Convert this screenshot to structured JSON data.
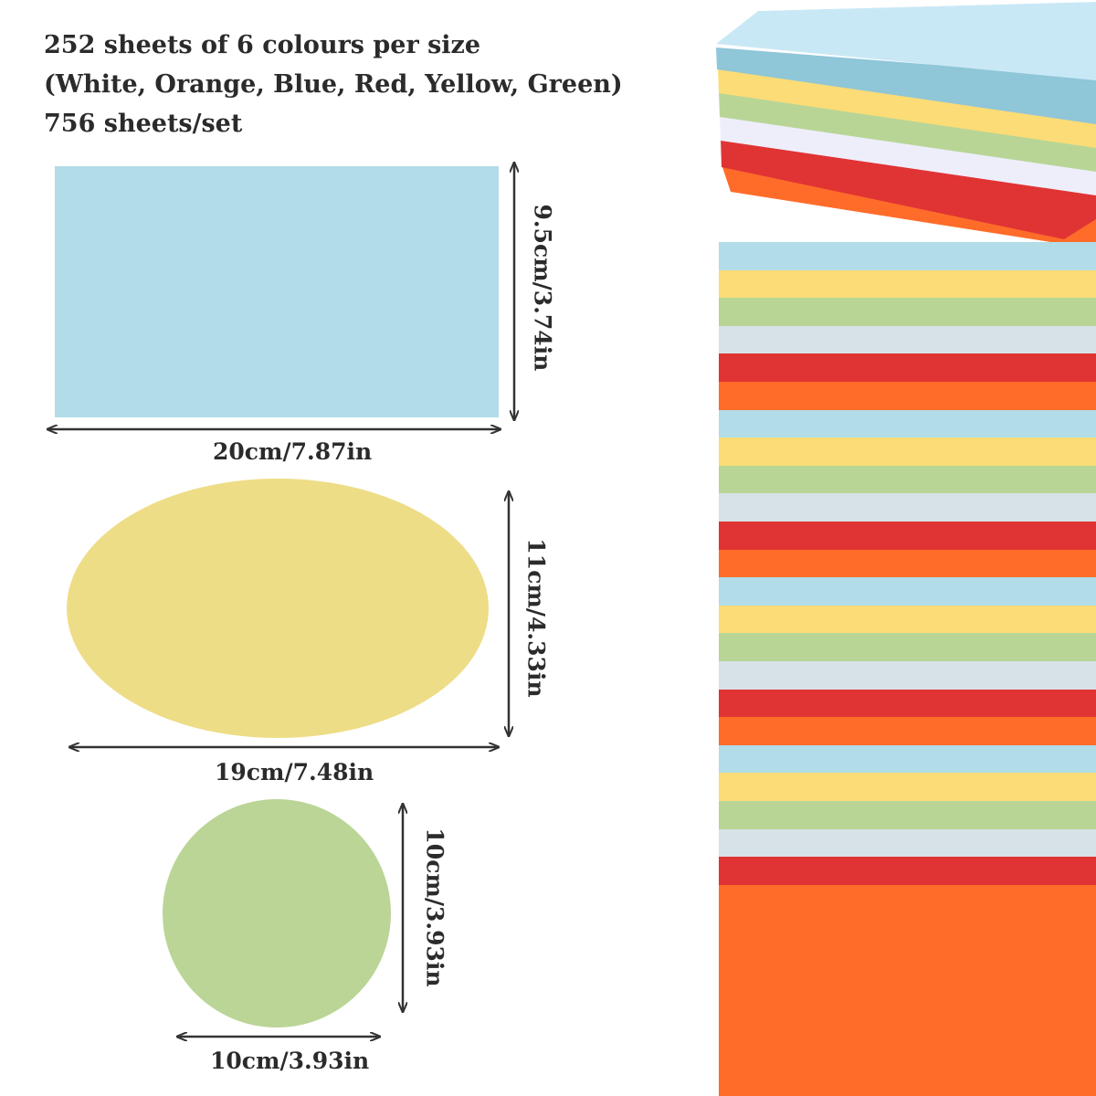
{
  "header": {
    "line1": "252 sheets of 6 colours per size",
    "line2": "(White, Orange, Blue, Red, Yellow, Green)",
    "line3": "756 sheets/set"
  },
  "shapes": {
    "rectangle": {
      "width_label": "20cm/7.87in",
      "height_label": "9.5cm/3.74in",
      "color": "#b1dce8"
    },
    "oval": {
      "width_label": "19cm/7.48in",
      "height_label": "11cm/4.33in",
      "color": "#eedd87"
    },
    "circle": {
      "width_label": "10cm/3.93in",
      "height_label": "10cm/3.93in",
      "color": "#bad596"
    }
  },
  "colors": {
    "blue": "#b1dce8",
    "yellow": "#fbdc76",
    "green": "#b8d596",
    "white": "#d7e2e6",
    "red": "#e03434",
    "orange": "#ff6c2a",
    "arrow": "#333333"
  },
  "stripe_sequence": [
    "blue",
    "yellow",
    "green",
    "white",
    "red",
    "orange",
    "blue",
    "yellow",
    "green",
    "white",
    "red",
    "orange",
    "blue",
    "yellow",
    "green",
    "white",
    "red",
    "orange",
    "blue",
    "yellow",
    "green",
    "white",
    "red",
    "orange"
  ]
}
